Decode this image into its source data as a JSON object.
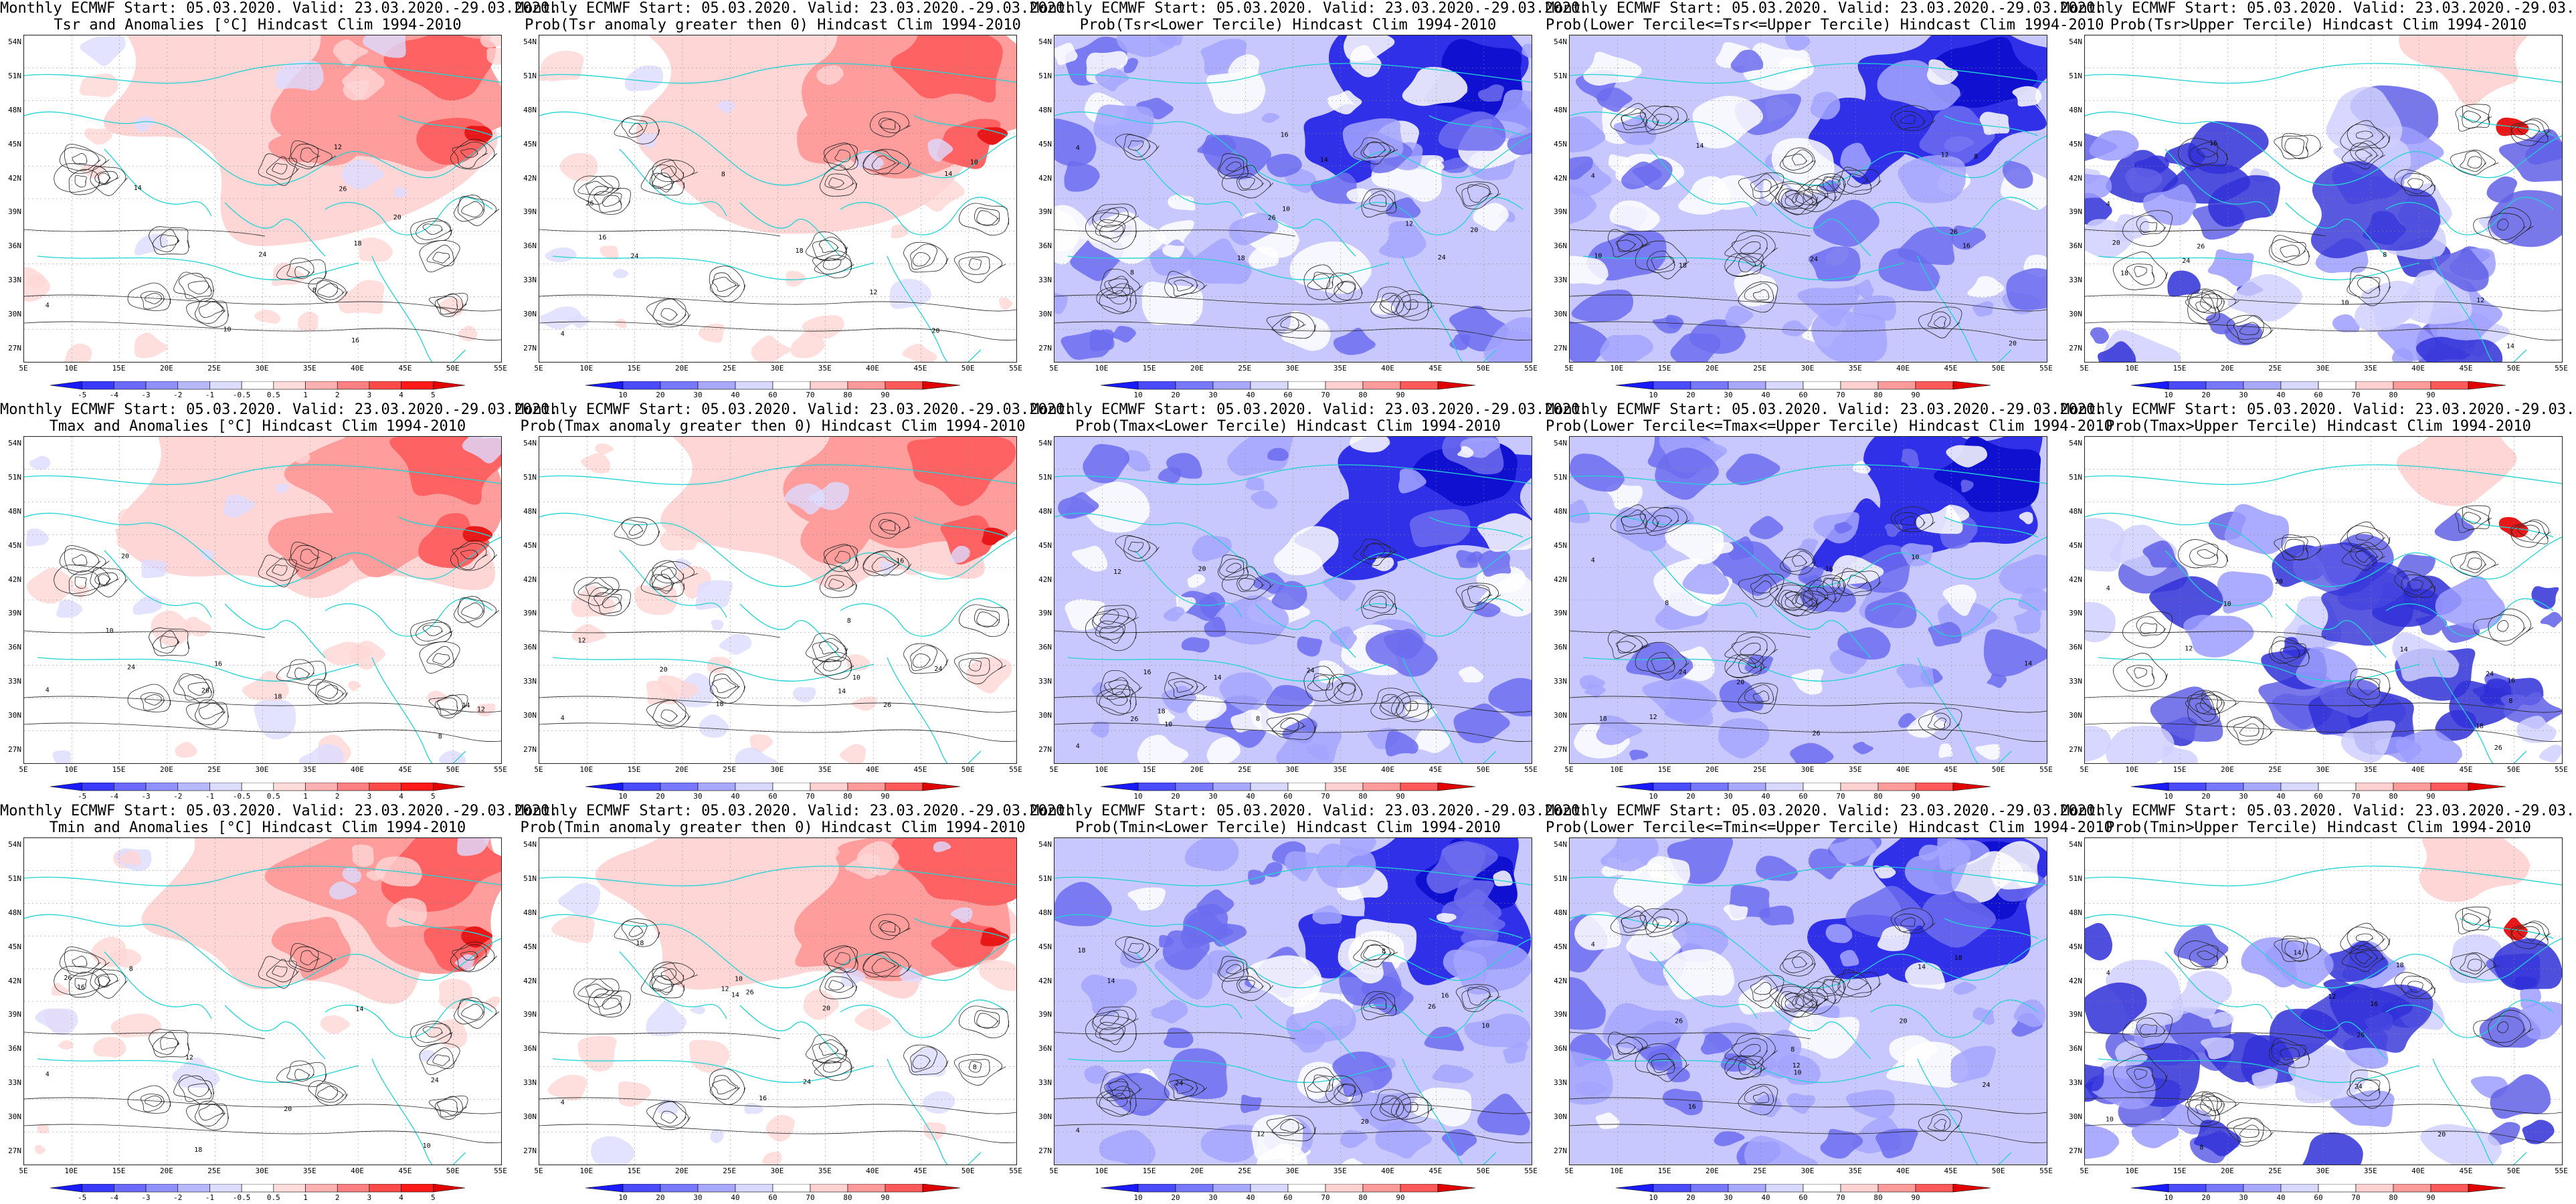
{
  "figure": {
    "rows": [
      {
        "variable": "Tsr",
        "header": "Monthly ECMWF Start: 05.03.2020. Valid: 23.03.2020.-29.03.2020."
      },
      {
        "variable": "Tmax",
        "header": "Monthly ECMWF Start: 05.03.2020. Valid: 23.03.2020.-29.03.2020."
      },
      {
        "variable": "Tmin",
        "header": "Monthly ECMWF Start: 05.03.2020. Valid: 23.03.2020.-29.03.2020."
      }
    ],
    "subtitles": [
      [
        "Tsr and Anomalies [°C] Hindcast Clim 1994-2010",
        "Prob(Tsr anomaly greater then 0) Hindcast Clim 1994-2010",
        "Prob(Tsr<Lower Tercile) Hindcast Clim 1994-2010",
        "Prob(Lower Tercile<=Tsr<=Upper Tercile) Hindcast Clim 1994-2010",
        "Prob(Tsr>Upper Tercile) Hindcast Clim 1994-2010"
      ],
      [
        "Tmax and Anomalies [°C] Hindcast Clim 1994-2010",
        "Prob(Tmax anomaly greater then 0) Hindcast Clim 1994-2010",
        "Prob(Tmax<Lower Tercile) Hindcast Clim 1994-2010",
        "Prob(Lower Tercile<=Tmax<=Upper Tercile) Hindcast Clim 1994-2010",
        "Prob(Tmax>Upper Tercile) Hindcast Clim 1994-2010"
      ],
      [
        "Tmin and Anomalies [°C] Hindcast Clim 1994-2010",
        "Prob(Tmin anomaly greater then 0) Hindcast Clim 1994-2010",
        "Prob(Tmin<Lower Tercile) Hindcast Clim 1994-2010",
        "Prob(Lower Tercile<=Tmin<=Upper Tercile) Hindcast Clim 1994-2010",
        "Prob(Tmin>Upper Tercile) Hindcast Clim 1994-2010"
      ]
    ],
    "panel_kinds": [
      [
        "anom",
        "prob_pos",
        "prob_blue",
        "prob_blue",
        "prob_mix"
      ],
      [
        "anom",
        "prob_pos",
        "prob_blue",
        "prob_blue",
        "prob_mix"
      ],
      [
        "anom",
        "prob_pos",
        "prob_blue",
        "prob_blue",
        "prob_mix"
      ]
    ],
    "lat_labels": [
      "54N",
      "51N",
      "48N",
      "45N",
      "42N",
      "39N",
      "36N",
      "33N",
      "30N",
      "27N"
    ],
    "lon_labels": [
      "5E",
      "10E",
      "15E",
      "20E",
      "25E",
      "30E",
      "35E",
      "40E",
      "45E",
      "50E",
      "55E"
    ],
    "colorbars": {
      "anom": {
        "ticks": [
          "-5",
          "-4",
          "-3",
          "-2",
          "-1",
          "-0.5",
          "0.5",
          "1",
          "2",
          "3",
          "4",
          "5"
        ],
        "colors": [
          "#1a1aff",
          "#3a3aff",
          "#6a6aff",
          "#9090ff",
          "#b8b8ff",
          "#dcdcff",
          "#ffffff",
          "#ffdcdc",
          "#ffb0b0",
          "#ff8080",
          "#ff4a4a",
          "#ff1a1a",
          "#e00000"
        ]
      },
      "prob": {
        "ticks": [
          "10",
          "20",
          "30",
          "40",
          "60",
          "70",
          "80",
          "90"
        ],
        "colors": [
          "#1a1aff",
          "#4a4aff",
          "#7878ff",
          "#a8a8ff",
          "#d8d8ff",
          "#ffffff",
          "#ffd0d0",
          "#ff9a9a",
          "#ff5a5a",
          "#e00000"
        ]
      }
    },
    "map_palettes": {
      "anom": {
        "bg": "#ffffff",
        "warm": [
          "#ffd6d6",
          "#ff9c9c",
          "#ff6262",
          "#e81818"
        ],
        "cool": [
          "#dcdcff"
        ]
      },
      "prob_pos": {
        "bg": "#ffffff",
        "warm": [
          "#ffd6d6",
          "#ff9c9c",
          "#ff6262",
          "#e81818"
        ],
        "cool": [
          "#dcdcff",
          "#b8b8ff"
        ]
      },
      "prob_blue": {
        "bg": "#c8c8ff",
        "warm": [],
        "cool": [
          "#ffffff",
          "#a4a4ff",
          "#6c6cf0",
          "#3030e8",
          "#1010d0"
        ]
      },
      "prob_mix": {
        "bg": "#ffffff",
        "warm": [
          "#ffd6d6",
          "#ff8080",
          "#e81818"
        ],
        "cool": [
          "#d0d0ff",
          "#9c9cff",
          "#6060e8",
          "#3030d8"
        ]
      }
    },
    "contour_labels": [
      "4",
      "8",
      "10",
      "12",
      "14",
      "16",
      "18",
      "20",
      "24",
      "26"
    ]
  }
}
